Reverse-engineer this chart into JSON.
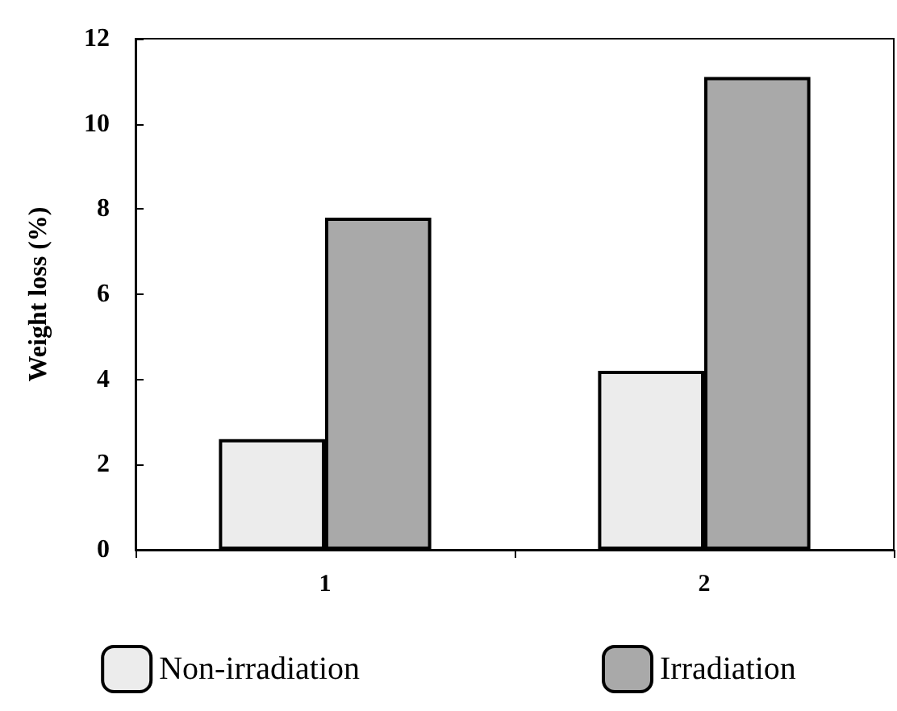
{
  "chart_data": {
    "type": "bar",
    "ylabel": "Weight loss (%)",
    "categories": [
      "1",
      "2"
    ],
    "series": [
      {
        "name": "Non-irradiation",
        "color": "#ececec",
        "values": [
          2.6,
          4.2
        ]
      },
      {
        "name": "Irradiation",
        "color": "#a9a9a9",
        "values": [
          7.8,
          11.1
        ]
      }
    ],
    "ylim": [
      0,
      12
    ],
    "yticks": [
      0,
      2,
      4,
      6,
      8,
      10,
      12
    ],
    "grid": false,
    "legend": "bottom"
  }
}
